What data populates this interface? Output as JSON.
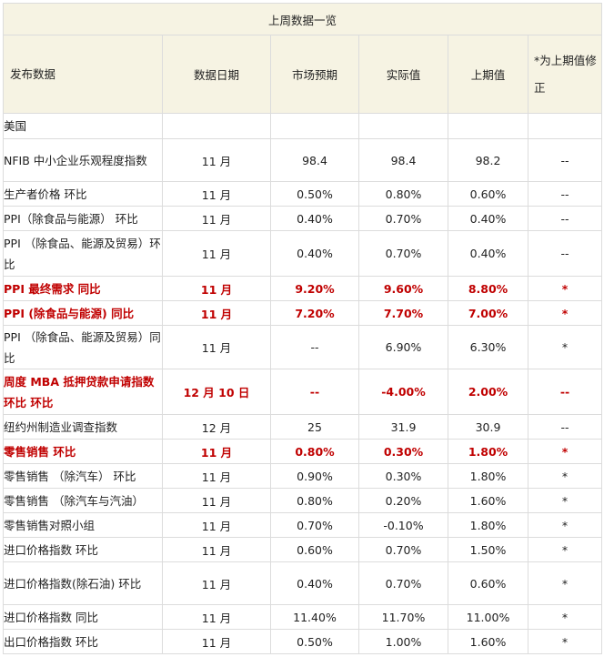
{
  "title": "上周数据一览",
  "headers": [
    "发布数据",
    "数据日期",
    "市场预期",
    "实际值",
    "上期值",
    "*为上期值修正"
  ],
  "region": "美国",
  "rows": [
    {
      "name": "NFIB 中小企业乐观程度指数",
      "date": "11 月",
      "forecast": "98.4",
      "actual": "98.4",
      "previous": "98.2",
      "revised": "--",
      "highlight": false
    },
    {
      "name": "生产者价格  环比",
      "date": "11 月",
      "forecast": "0.50%",
      "actual": "0.80%",
      "previous": "0.60%",
      "revised": "--",
      "highlight": false
    },
    {
      "name": "PPI（除食品与能源）  环比",
      "date": "11 月",
      "forecast": "0.40%",
      "actual": "0.70%",
      "previous": "0.40%",
      "revised": "--",
      "highlight": false
    },
    {
      "name": "PPI （除食品、能源及贸易）环比",
      "date": "11 月",
      "forecast": "0.40%",
      "actual": "0.70%",
      "previous": "0.40%",
      "revised": "--",
      "highlight": false
    },
    {
      "name": "PPI 最终需求  同比",
      "date": "11 月",
      "forecast": "9.20%",
      "actual": "9.60%",
      "previous": "8.80%",
      "revised": "*",
      "highlight": true
    },
    {
      "name": "PPI (除食品与能源)   同比",
      "date": "11 月",
      "forecast": "7.20%",
      "actual": "7.70%",
      "previous": "7.00%",
      "revised": "*",
      "highlight": true
    },
    {
      "name": "PPI （除食品、能源及贸易）同比",
      "date": "11 月",
      "forecast": "--",
      "actual": "6.90%",
      "previous": "6.30%",
      "revised": "*",
      "highlight": false
    },
    {
      "name": "周度 MBA 抵押贷款申请指数  环比  环比",
      "date": "12 月 10 日",
      "forecast": "--",
      "actual": "-4.00%",
      "previous": "2.00%",
      "revised": "--",
      "highlight": true
    },
    {
      "name": "纽约州制造业调查指数",
      "date": "12 月",
      "forecast": "25",
      "actual": "31.9",
      "previous": "30.9",
      "revised": "--",
      "highlight": false
    },
    {
      "name": "零售销售  环比",
      "date": "11 月",
      "forecast": "0.80%",
      "actual": "0.30%",
      "previous": "1.80%",
      "revised": "*",
      "highlight": true
    },
    {
      "name": "零售销售 （除汽车）  环比",
      "date": "11 月",
      "forecast": "0.90%",
      "actual": "0.30%",
      "previous": "1.80%",
      "revised": "*",
      "highlight": false
    },
    {
      "name": "零售销售 （除汽车与汽油）",
      "date": "11 月",
      "forecast": "0.80%",
      "actual": "0.20%",
      "previous": "1.60%",
      "revised": "*",
      "highlight": false
    },
    {
      "name": "零售销售对照小组",
      "date": "11 月",
      "forecast": "0.70%",
      "actual": "-0.10%",
      "previous": "1.80%",
      "revised": "*",
      "highlight": false
    },
    {
      "name": "进口价格指数  环比",
      "date": "11 月",
      "forecast": "0.60%",
      "actual": "0.70%",
      "previous": "1.50%",
      "revised": "*",
      "highlight": false
    },
    {
      "name": "进口价格指数(除石油)  环比",
      "date": "11 月",
      "forecast": "0.40%",
      "actual": "0.70%",
      "previous": "0.60%",
      "revised": "*",
      "highlight": false
    },
    {
      "name": "进口价格指数  同比",
      "date": "11 月",
      "forecast": "11.40%",
      "actual": "11.70%",
      "previous": "11.00%",
      "revised": "*",
      "highlight": false
    },
    {
      "name": "出口价格指数  环比",
      "date": "11 月",
      "forecast": "0.50%",
      "actual": "1.00%",
      "previous": "1.60%",
      "revised": "*",
      "highlight": false
    }
  ]
}
